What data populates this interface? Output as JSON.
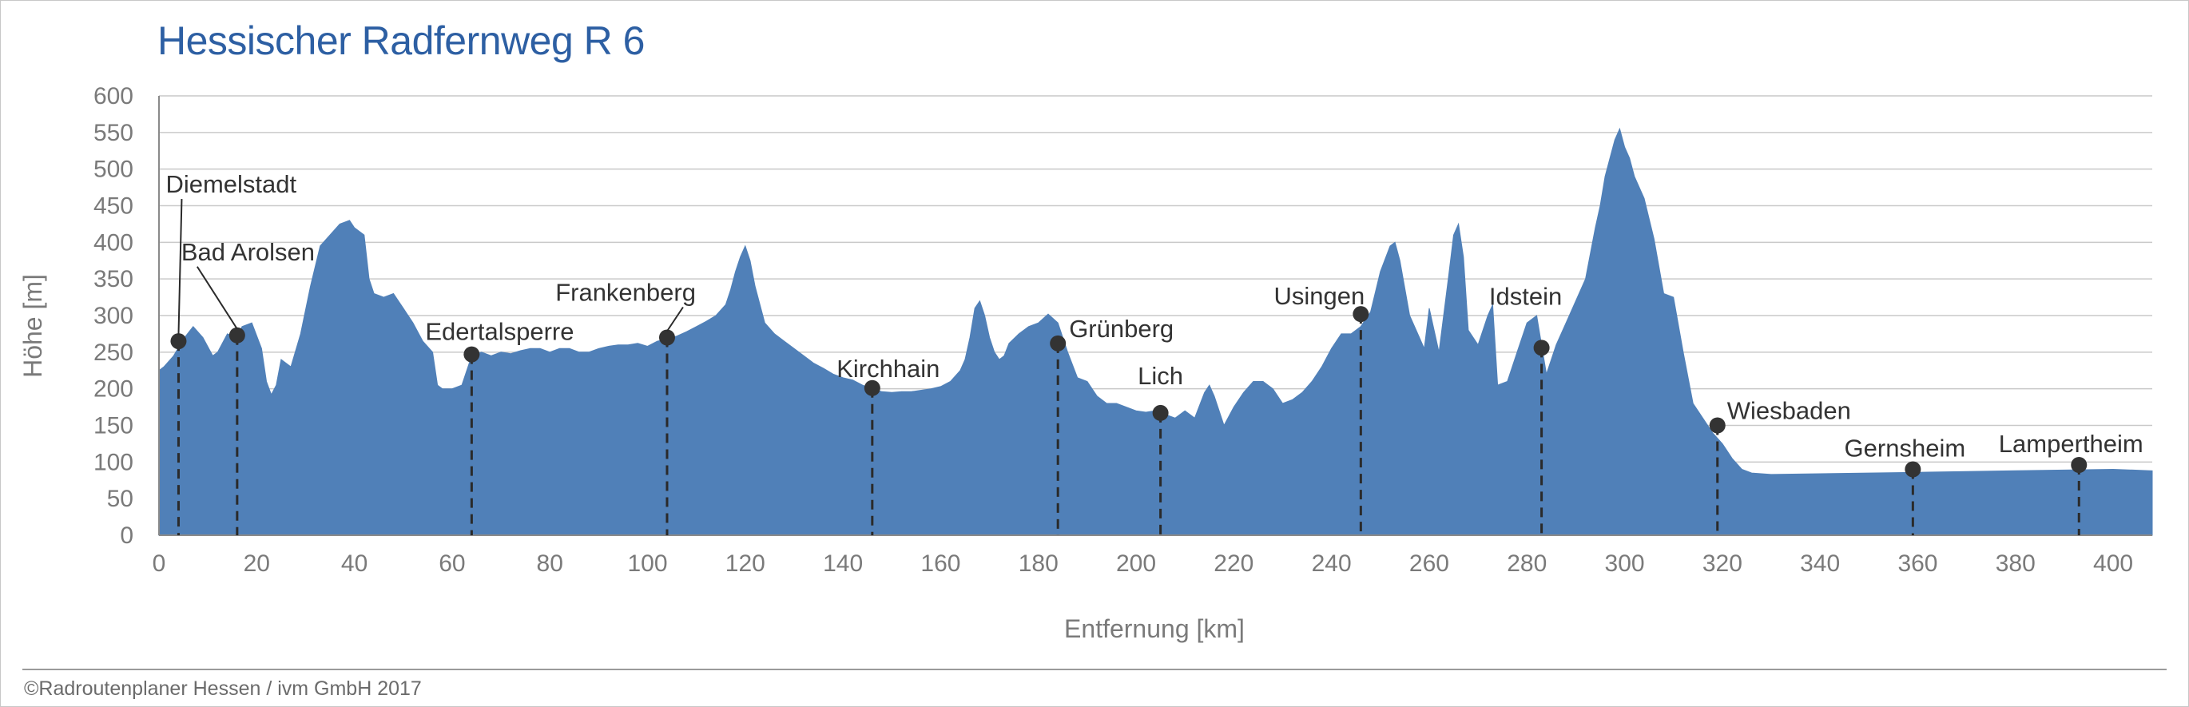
{
  "title": "Hessischer Radfernweg R 6",
  "footer": "©Radroutenplaner Hessen / ivm GmbH 2017",
  "colors": {
    "fill": "#5080b8",
    "title": "#2d5fa3",
    "marker": "#333333",
    "grid": "#c9c9c9"
  },
  "chart_data": {
    "type": "area",
    "title": "Hessischer Radfernweg R 6",
    "xlabel": "Entfernung [km]",
    "ylabel": "Höhe [m]",
    "xlim": [
      0,
      408
    ],
    "ylim": [
      0,
      600
    ],
    "xticks": [
      0,
      20,
      40,
      60,
      80,
      100,
      120,
      140,
      160,
      180,
      200,
      220,
      240,
      260,
      280,
      300,
      320,
      340,
      360,
      380,
      400
    ],
    "yticks": [
      0,
      50,
      100,
      150,
      200,
      250,
      300,
      350,
      400,
      450,
      500,
      550,
      600
    ],
    "grid": "horizontal",
    "series": [
      {
        "x": [
          0,
          1,
          3,
          5,
          7,
          9,
          11,
          12,
          14,
          16,
          17,
          19,
          21,
          22,
          23,
          24,
          25,
          27,
          29,
          31,
          33,
          35,
          37,
          39,
          40,
          42,
          43,
          44,
          46,
          48,
          50,
          52,
          54,
          56,
          57,
          58,
          60,
          62,
          64,
          66,
          68,
          70,
          72,
          74,
          76,
          78,
          80,
          82,
          84,
          86,
          88,
          90,
          92,
          94,
          96,
          98,
          100,
          102,
          104,
          106,
          108,
          110,
          112,
          114,
          116,
          117,
          118,
          119,
          120,
          121,
          122,
          124,
          126,
          128,
          130,
          132,
          134,
          136,
          138,
          140,
          142,
          144,
          146,
          148,
          150,
          152,
          154,
          156,
          158,
          160,
          162,
          164,
          165,
          166,
          167,
          168,
          169,
          170,
          171,
          172,
          173,
          174,
          176,
          178,
          180,
          182,
          184,
          186,
          188,
          190,
          192,
          194,
          196,
          198,
          200,
          202,
          204,
          206,
          208,
          210,
          212,
          214,
          215,
          216,
          218,
          220,
          222,
          224,
          226,
          228,
          230,
          232,
          234,
          236,
          238,
          240,
          242,
          244,
          246,
          248,
          250,
          252,
          253,
          254,
          256,
          258,
          259,
          260,
          262,
          264,
          265,
          266,
          267,
          268,
          270,
          272,
          273,
          274,
          276,
          278,
          280,
          282,
          284,
          286,
          288,
          290,
          292,
          294,
          295,
          296,
          297,
          298,
          299,
          300,
          301,
          302,
          304,
          306,
          308,
          310,
          312,
          314,
          316,
          318,
          320,
          322,
          324,
          326,
          328,
          330,
          340,
          350,
          360,
          370,
          380,
          390,
          400,
          408
        ],
        "y": [
          225,
          230,
          245,
          268,
          285,
          270,
          245,
          250,
          275,
          270,
          285,
          290,
          255,
          210,
          192,
          205,
          240,
          230,
          275,
          340,
          395,
          410,
          425,
          430,
          420,
          410,
          350,
          330,
          325,
          330,
          310,
          290,
          265,
          250,
          205,
          200,
          200,
          205,
          245,
          250,
          245,
          250,
          248,
          252,
          255,
          255,
          250,
          255,
          255,
          250,
          250,
          255,
          258,
          260,
          260,
          262,
          258,
          265,
          268,
          272,
          278,
          285,
          292,
          300,
          315,
          335,
          360,
          380,
          395,
          375,
          340,
          290,
          275,
          265,
          255,
          245,
          235,
          228,
          220,
          215,
          212,
          205,
          200,
          196,
          195,
          196,
          196,
          198,
          200,
          203,
          210,
          225,
          240,
          270,
          310,
          320,
          300,
          270,
          250,
          240,
          245,
          262,
          275,
          285,
          290,
          302,
          290,
          250,
          215,
          210,
          190,
          180,
          180,
          175,
          170,
          168,
          170,
          165,
          160,
          170,
          160,
          195,
          205,
          190,
          150,
          175,
          195,
          210,
          210,
          200,
          180,
          185,
          195,
          210,
          230,
          255,
          275,
          275,
          285,
          305,
          360,
          395,
          400,
          375,
          300,
          270,
          255,
          310,
          250,
          355,
          410,
          425,
          380,
          280,
          260,
          300,
          315,
          205,
          210,
          250,
          290,
          300,
          220,
          260,
          290,
          320,
          350,
          420,
          450,
          490,
          515,
          540,
          555,
          530,
          515,
          490,
          460,
          405,
          330,
          325,
          250,
          180,
          160,
          140,
          125,
          105,
          90,
          85,
          84,
          83,
          84,
          85,
          86,
          87,
          88,
          89,
          90,
          88
        ]
      }
    ],
    "places": [
      {
        "name": "Diemelstadt",
        "x": 4,
        "y": 265
      },
      {
        "name": "Bad Arolsen",
        "x": 16,
        "y": 273
      },
      {
        "name": "Edertalsperre",
        "x": 64,
        "y": 247
      },
      {
        "name": "Frankenberg",
        "x": 104,
        "y": 270
      },
      {
        "name": "Kirchhain",
        "x": 146,
        "y": 201
      },
      {
        "name": "Grünberg",
        "x": 184,
        "y": 262
      },
      {
        "name": "Lich",
        "x": 205,
        "y": 167
      },
      {
        "name": "Usingen",
        "x": 246,
        "y": 302
      },
      {
        "name": "Idstein",
        "x": 283,
        "y": 256
      },
      {
        "name": "Wiesbaden",
        "x": 319,
        "y": 150
      },
      {
        "name": "Gernsheim",
        "x": 359,
        "y": 90
      },
      {
        "name": "Lampertheim",
        "x": 393,
        "y": 96
      }
    ]
  }
}
